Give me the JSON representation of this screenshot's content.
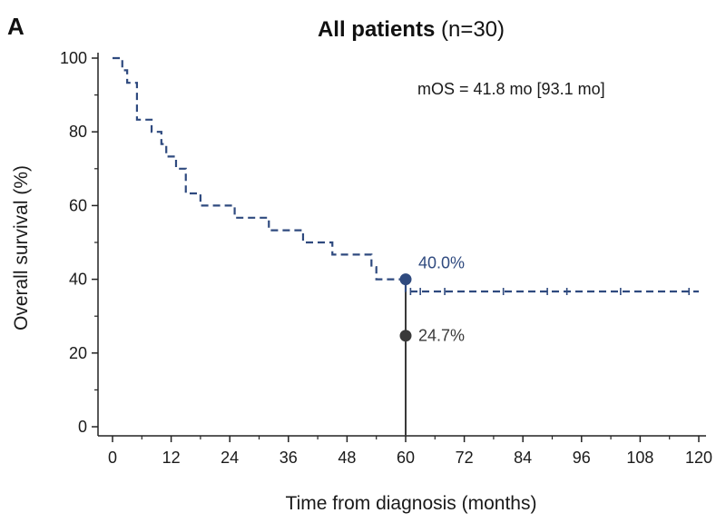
{
  "chart_data": {
    "type": "line",
    "panel_label": "A",
    "title_bold": "All patients",
    "title_rest": " (n=30)",
    "xlabel": "Time from diagnosis (months)",
    "ylabel": "Overall survival (%)",
    "xlim": [
      0,
      120
    ],
    "ylim": [
      0,
      100
    ],
    "xticks": [
      0,
      12,
      24,
      36,
      48,
      60,
      72,
      84,
      96,
      108,
      120
    ],
    "yticks": [
      0,
      20,
      40,
      60,
      80,
      100
    ],
    "grid": false,
    "annotation": "mOS = 41.8 mo [93.1 mo]",
    "series": [
      {
        "name": "All patients",
        "style": "dashed-step",
        "color": "#2f4a7f",
        "x": [
          0,
          2,
          3,
          5,
          8,
          10,
          11,
          13,
          15,
          18,
          25,
          32,
          39,
          45,
          53,
          54,
          60,
          120
        ],
        "y": [
          100,
          96.7,
          93.3,
          83.3,
          80,
          76.7,
          73.3,
          70,
          63.3,
          60,
          56.7,
          53.3,
          50,
          46.7,
          43.3,
          40,
          36.7,
          36.7
        ]
      }
    ],
    "censor_marks": {
      "x": [
        61,
        63,
        68,
        80,
        89,
        93,
        104,
        118
      ],
      "y": 36.7
    },
    "markers": [
      {
        "x": 60,
        "y": 40.0,
        "label": "40.0%",
        "color": "#2f4a7f"
      },
      {
        "x": 60,
        "y": 24.7,
        "label": "24.7%",
        "color": "#3a3a3a"
      }
    ],
    "reference_line": {
      "x": 60,
      "from_y": 0,
      "to_y": 40
    }
  }
}
